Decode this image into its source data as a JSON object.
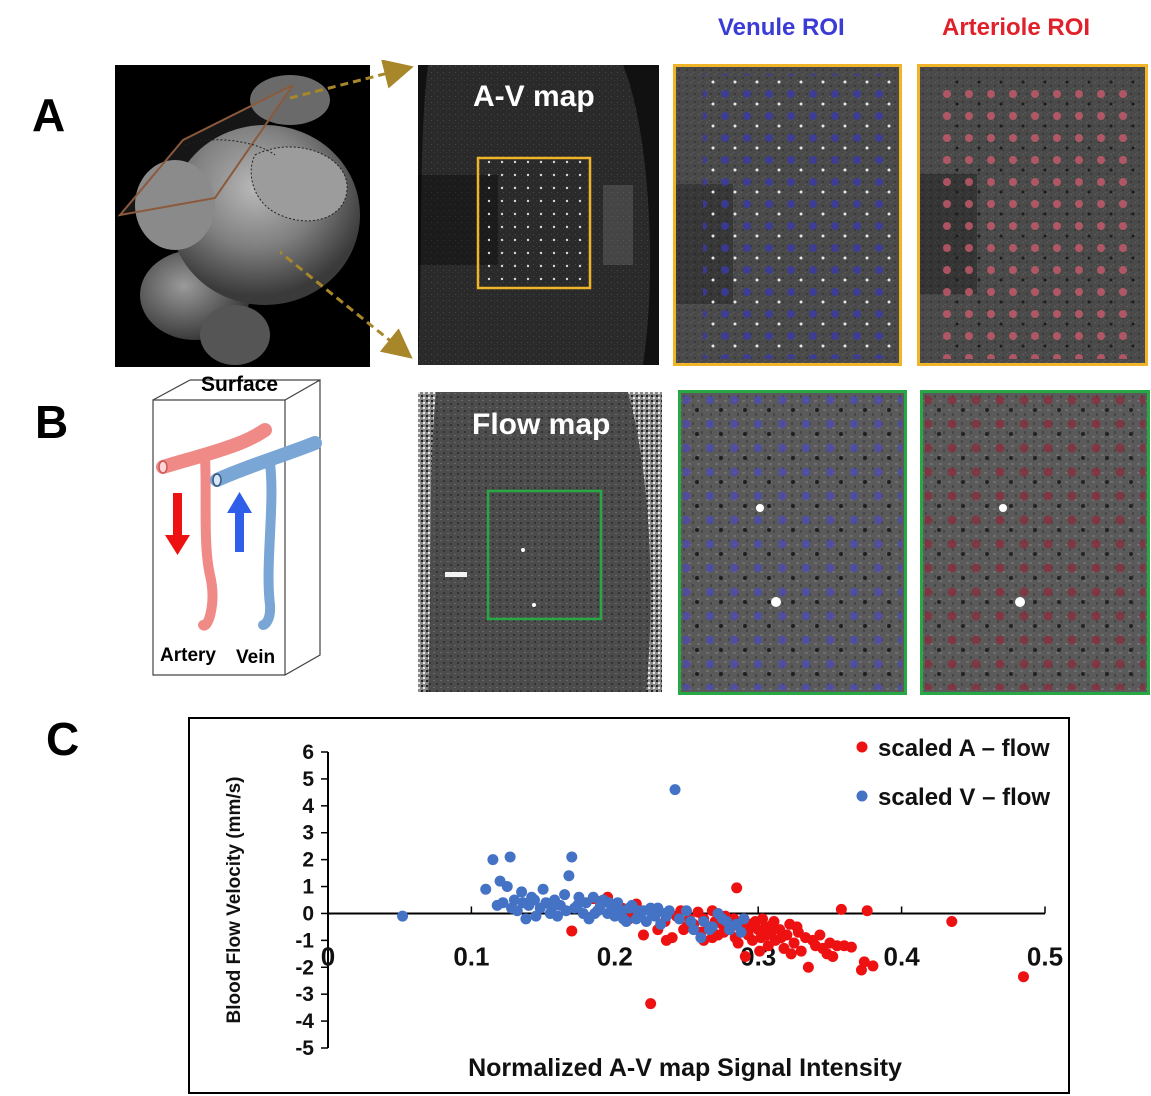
{
  "panels": {
    "a": {
      "letter": "A",
      "map_label": "A-V map",
      "venule_title": "Venule ROI",
      "arteriole_title": "Arteriole ROI"
    },
    "b": {
      "letter": "B",
      "map_label": "Flow map",
      "surface_label": "Surface",
      "artery_label": "Artery",
      "vein_label": "Vein"
    },
    "c": {
      "letter": "C"
    }
  },
  "colors": {
    "venule_title": "#3b3bd6",
    "arteriole_title": "#e0202a",
    "a_box": "#f0b429",
    "b_box": "#28a745",
    "guide_arrow": "#a8862a",
    "artery_series": "#ee1111",
    "vein_series": "#4472c4"
  },
  "chart_data": {
    "type": "scatter",
    "title": "",
    "xlabel": "Normalized A-V map Signal Intensity",
    "ylabel": "Blood Flow Velocity (mm/s)",
    "xlim": [
      0,
      0.5
    ],
    "ylim": [
      -5,
      6
    ],
    "x_ticks": [
      "0",
      "0.1",
      "0.2",
      "0.3",
      "0.4",
      "0.5"
    ],
    "y_ticks": [
      "6",
      "5",
      "4",
      "3",
      "2",
      "1",
      "0",
      "-1",
      "-2",
      "-3",
      "-4",
      "-5"
    ],
    "legend_position": "top-right",
    "series": [
      {
        "name": "scaled A – flow",
        "color": "#ee1111",
        "points": [
          [
            0.17,
            -0.65
          ],
          [
            0.185,
            0.55
          ],
          [
            0.19,
            0.45
          ],
          [
            0.195,
            0.6
          ],
          [
            0.2,
            0.3
          ],
          [
            0.205,
            0.2
          ],
          [
            0.21,
            -0.2
          ],
          [
            0.215,
            0.35
          ],
          [
            0.22,
            -0.8
          ],
          [
            0.225,
            -3.35
          ],
          [
            0.23,
            -0.6
          ],
          [
            0.235,
            -0.3
          ],
          [
            0.24,
            -0.9
          ],
          [
            0.243,
            -0.1
          ],
          [
            0.246,
            0.1
          ],
          [
            0.25,
            -0.5
          ],
          [
            0.252,
            -0.2
          ],
          [
            0.255,
            -0.4
          ],
          [
            0.258,
            0.05
          ],
          [
            0.26,
            -0.7
          ],
          [
            0.262,
            -0.2
          ],
          [
            0.265,
            -0.5
          ],
          [
            0.268,
            0.1
          ],
          [
            0.27,
            -0.3
          ],
          [
            0.272,
            -0.8
          ],
          [
            0.275,
            -0.4
          ],
          [
            0.277,
            -0.1
          ],
          [
            0.28,
            -0.6
          ],
          [
            0.282,
            -0.3
          ],
          [
            0.284,
            -0.9
          ],
          [
            0.285,
            0.95
          ],
          [
            0.287,
            -0.5
          ],
          [
            0.29,
            -0.2
          ],
          [
            0.291,
            -1.6
          ],
          [
            0.292,
            -0.7
          ],
          [
            0.294,
            -0.4
          ],
          [
            0.296,
            -1.0
          ],
          [
            0.298,
            -0.3
          ],
          [
            0.3,
            -0.6
          ],
          [
            0.302,
            -0.9
          ],
          [
            0.303,
            -0.2
          ],
          [
            0.305,
            -0.5
          ],
          [
            0.307,
            -1.2
          ],
          [
            0.309,
            -0.7
          ],
          [
            0.31,
            -0.4
          ],
          [
            0.312,
            -1.0
          ],
          [
            0.315,
            -0.6
          ],
          [
            0.318,
            -1.3
          ],
          [
            0.32,
            -0.8
          ],
          [
            0.322,
            -0.4
          ],
          [
            0.325,
            -1.1
          ],
          [
            0.328,
            -0.7
          ],
          [
            0.33,
            -1.4
          ],
          [
            0.333,
            -0.9
          ],
          [
            0.335,
            -2.0
          ],
          [
            0.338,
            -1.0
          ],
          [
            0.34,
            -1.2
          ],
          [
            0.343,
            -0.8
          ],
          [
            0.345,
            -1.3
          ],
          [
            0.348,
            -1.5
          ],
          [
            0.35,
            -1.1
          ],
          [
            0.352,
            -1.6
          ],
          [
            0.355,
            -1.2
          ],
          [
            0.358,
            0.15
          ],
          [
            0.36,
            -1.2
          ],
          [
            0.365,
            -1.25
          ],
          [
            0.372,
            -2.1
          ],
          [
            0.374,
            -1.8
          ],
          [
            0.376,
            0.1
          ],
          [
            0.38,
            -1.95
          ],
          [
            0.435,
            -0.3
          ],
          [
            0.485,
            -2.35
          ],
          [
            0.248,
            -0.6
          ],
          [
            0.262,
            -1.0
          ],
          [
            0.268,
            -0.9
          ],
          [
            0.276,
            -0.7
          ],
          [
            0.283,
            -0.2
          ],
          [
            0.286,
            -1.1
          ],
          [
            0.293,
            -0.8
          ],
          [
            0.297,
            -0.5
          ],
          [
            0.301,
            -1.4
          ],
          [
            0.306,
            -0.8
          ],
          [
            0.311,
            -0.3
          ],
          [
            0.316,
            -0.9
          ],
          [
            0.323,
            -1.5
          ],
          [
            0.327,
            -0.5
          ],
          [
            0.236,
            -1.0
          ],
          [
            0.212,
            0.05
          ]
        ]
      },
      {
        "name": "scaled V – flow",
        "color": "#4472c4",
        "points": [
          [
            0.052,
            -0.1
          ],
          [
            0.11,
            0.9
          ],
          [
            0.115,
            2.0
          ],
          [
            0.12,
            1.2
          ],
          [
            0.122,
            0.4
          ],
          [
            0.125,
            1.0
          ],
          [
            0.127,
            2.1
          ],
          [
            0.13,
            0.5
          ],
          [
            0.132,
            0.1
          ],
          [
            0.135,
            0.8
          ],
          [
            0.138,
            -0.2
          ],
          [
            0.14,
            0.3
          ],
          [
            0.142,
            0.6
          ],
          [
            0.145,
            -0.1
          ],
          [
            0.148,
            0.2
          ],
          [
            0.15,
            0.9
          ],
          [
            0.152,
            0.4
          ],
          [
            0.155,
            0.0
          ],
          [
            0.158,
            0.5
          ],
          [
            0.16,
            -0.1
          ],
          [
            0.162,
            0.3
          ],
          [
            0.165,
            0.7
          ],
          [
            0.168,
            1.4
          ],
          [
            0.17,
            2.1
          ],
          [
            0.172,
            0.2
          ],
          [
            0.175,
            0.6
          ],
          [
            0.178,
            0.0
          ],
          [
            0.18,
            0.4
          ],
          [
            0.182,
            -0.2
          ],
          [
            0.185,
            0.6
          ],
          [
            0.188,
            0.1
          ],
          [
            0.19,
            0.3
          ],
          [
            0.192,
            0.5
          ],
          [
            0.195,
            0.0
          ],
          [
            0.198,
            0.2
          ],
          [
            0.2,
            -0.1
          ],
          [
            0.202,
            0.4
          ],
          [
            0.205,
            0.1
          ],
          [
            0.208,
            -0.3
          ],
          [
            0.21,
            0.2
          ],
          [
            0.212,
            0.3
          ],
          [
            0.215,
            -0.2
          ],
          [
            0.218,
            0.0
          ],
          [
            0.22,
            0.1
          ],
          [
            0.222,
            -0.3
          ],
          [
            0.225,
            0.2
          ],
          [
            0.228,
            -0.1
          ],
          [
            0.23,
            0.2
          ],
          [
            0.232,
            -0.4
          ],
          [
            0.235,
            0.0
          ],
          [
            0.238,
            0.1
          ],
          [
            0.242,
            4.6
          ],
          [
            0.245,
            -0.2
          ],
          [
            0.25,
            0.1
          ],
          [
            0.255,
            -0.6
          ],
          [
            0.26,
            -0.9
          ],
          [
            0.262,
            -0.3
          ],
          [
            0.268,
            -0.5
          ],
          [
            0.272,
            0.0
          ],
          [
            0.275,
            -0.2
          ],
          [
            0.28,
            -0.6
          ],
          [
            0.285,
            -0.4
          ],
          [
            0.288,
            -0.7
          ],
          [
            0.29,
            -0.2
          ],
          [
            0.118,
            0.3
          ],
          [
            0.128,
            0.2
          ],
          [
            0.136,
            0.4
          ],
          [
            0.144,
            0.5
          ],
          [
            0.156,
            0.2
          ],
          [
            0.166,
            0.1
          ],
          [
            0.174,
            0.3
          ],
          [
            0.186,
            0.0
          ],
          [
            0.196,
            0.4
          ],
          [
            0.206,
            -0.2
          ],
          [
            0.216,
            0.1
          ],
          [
            0.226,
            0.0
          ],
          [
            0.236,
            -0.1
          ],
          [
            0.253,
            -0.3
          ],
          [
            0.266,
            -0.6
          ],
          [
            0.278,
            -0.3
          ]
        ]
      }
    ]
  }
}
